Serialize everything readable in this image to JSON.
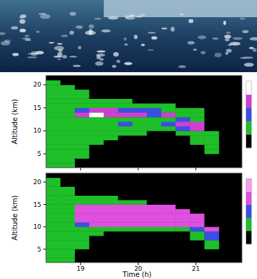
{
  "chart_data": [
    {
      "type": "heatmap",
      "y_label": "Altitude (km)",
      "tick_labels": "y",
      "xlim": [
        18.4,
        21.8
      ],
      "ylim": [
        2,
        22
      ],
      "xticks": [
        19,
        20,
        21
      ],
      "yticks": [
        5,
        10,
        15,
        20
      ],
      "x_edges": [
        18.4,
        18.65,
        18.9,
        19.15,
        19.4,
        19.65,
        19.9,
        20.15,
        20.4,
        20.65,
        20.9,
        21.15,
        21.4
      ],
      "y_edges": [
        2,
        3,
        4,
        5,
        6,
        7,
        8,
        9,
        10,
        11,
        12,
        13,
        14,
        15,
        16,
        17,
        18,
        19,
        20,
        21,
        22
      ],
      "cells": [
        [
          1,
          1,
          0,
          0,
          0,
          0,
          0,
          0,
          0,
          0,
          0,
          0
        ],
        [
          1,
          1,
          0,
          0,
          0,
          0,
          0,
          0,
          0,
          0,
          0,
          0
        ],
        [
          1,
          1,
          1,
          0,
          0,
          0,
          0,
          0,
          0,
          0,
          0,
          0
        ],
        [
          1,
          1,
          1,
          0,
          0,
          0,
          0,
          0,
          0,
          0,
          0,
          1
        ],
        [
          1,
          1,
          1,
          0,
          0,
          0,
          0,
          0,
          0,
          0,
          0,
          1
        ],
        [
          1,
          1,
          1,
          1,
          0,
          0,
          0,
          0,
          0,
          0,
          1,
          1
        ],
        [
          1,
          1,
          1,
          1,
          1,
          0,
          0,
          0,
          0,
          0,
          1,
          1
        ],
        [
          1,
          1,
          1,
          1,
          1,
          1,
          1,
          0,
          0,
          1,
          1,
          1
        ],
        [
          1,
          1,
          1,
          1,
          1,
          1,
          1,
          1,
          1,
          2,
          3,
          0
        ],
        [
          1,
          1,
          1,
          1,
          1,
          2,
          1,
          1,
          2,
          3,
          3,
          0
        ],
        [
          1,
          1,
          1,
          1,
          1,
          1,
          1,
          1,
          1,
          2,
          1,
          0
        ],
        [
          1,
          1,
          3,
          4,
          3,
          3,
          3,
          2,
          3,
          1,
          1,
          0
        ],
        [
          1,
          1,
          2,
          3,
          3,
          2,
          2,
          2,
          1,
          1,
          1,
          0
        ],
        [
          1,
          1,
          1,
          1,
          1,
          1,
          1,
          1,
          1,
          0,
          0,
          0
        ],
        [
          1,
          1,
          1,
          1,
          1,
          1,
          0,
          0,
          0,
          0,
          0,
          0
        ],
        [
          1,
          1,
          1,
          0,
          0,
          0,
          0,
          0,
          0,
          0,
          0,
          0
        ],
        [
          1,
          1,
          1,
          0,
          0,
          0,
          0,
          0,
          0,
          0,
          0,
          0
        ],
        [
          1,
          1,
          0,
          0,
          0,
          0,
          0,
          0,
          0,
          0,
          0,
          0
        ],
        [
          1,
          0,
          0,
          0,
          0,
          0,
          0,
          0,
          0,
          0,
          0,
          0
        ],
        [
          0,
          0,
          0,
          0,
          0,
          0,
          0,
          0,
          0,
          0,
          0,
          0
        ]
      ],
      "colors": [
        "#000000",
        "#1fbf2a",
        "#3a50e0",
        "#d040d0",
        "#ffffff"
      ],
      "colorbar_range": [
        0,
        4
      ]
    },
    {
      "type": "heatmap",
      "y_label": "Altitude (km)",
      "x_label": "Time (h)",
      "xlim": [
        18.4,
        21.8
      ],
      "ylim": [
        2,
        22
      ],
      "xticks": [
        19,
        20,
        21
      ],
      "yticks": [
        5,
        10,
        15,
        20
      ],
      "x_edges": [
        18.4,
        18.65,
        18.9,
        19.15,
        19.4,
        19.65,
        19.9,
        20.15,
        20.4,
        20.65,
        20.9,
        21.15,
        21.4
      ],
      "y_edges": [
        2,
        3,
        4,
        5,
        6,
        7,
        8,
        9,
        10,
        11,
        12,
        13,
        14,
        15,
        16,
        17,
        18,
        19,
        20,
        21,
        22
      ],
      "cells": [
        [
          1,
          1,
          0,
          0,
          0,
          0,
          0,
          0,
          0,
          0,
          0,
          0
        ],
        [
          1,
          1,
          0,
          0,
          0,
          0,
          0,
          0,
          0,
          0,
          0,
          0
        ],
        [
          1,
          1,
          0,
          0,
          0,
          0,
          0,
          0,
          0,
          0,
          0,
          0
        ],
        [
          1,
          1,
          1,
          0,
          0,
          0,
          0,
          0,
          0,
          0,
          0,
          1
        ],
        [
          1,
          1,
          1,
          0,
          0,
          0,
          0,
          0,
          0,
          0,
          0,
          1
        ],
        [
          1,
          1,
          1,
          0,
          0,
          0,
          0,
          0,
          0,
          0,
          1,
          2
        ],
        [
          1,
          1,
          1,
          1,
          0,
          0,
          0,
          0,
          0,
          0,
          1,
          2
        ],
        [
          1,
          1,
          1,
          1,
          1,
          1,
          1,
          1,
          1,
          1,
          2,
          3
        ],
        [
          1,
          1,
          2,
          3,
          3,
          3,
          3,
          3,
          3,
          3,
          3,
          0
        ],
        [
          1,
          1,
          3,
          3,
          3,
          3,
          3,
          3,
          3,
          3,
          3,
          0
        ],
        [
          1,
          1,
          3,
          3,
          3,
          3,
          3,
          3,
          3,
          3,
          3,
          0
        ],
        [
          1,
          1,
          3,
          3,
          3,
          3,
          3,
          3,
          3,
          3,
          0,
          0
        ],
        [
          1,
          1,
          3,
          3,
          3,
          3,
          3,
          3,
          3,
          0,
          0,
          0
        ],
        [
          1,
          1,
          1,
          1,
          1,
          1,
          1,
          0,
          0,
          0,
          0,
          0
        ],
        [
          1,
          1,
          1,
          1,
          1,
          0,
          0,
          0,
          0,
          0,
          0,
          0
        ],
        [
          1,
          1,
          0,
          0,
          0,
          0,
          0,
          0,
          0,
          0,
          0,
          0
        ],
        [
          1,
          1,
          0,
          0,
          0,
          0,
          0,
          0,
          0,
          0,
          0,
          0
        ],
        [
          1,
          0,
          0,
          0,
          0,
          0,
          0,
          0,
          0,
          0,
          0,
          0
        ],
        [
          1,
          0,
          0,
          0,
          0,
          0,
          0,
          0,
          0,
          0,
          0,
          0
        ],
        [
          0,
          0,
          0,
          0,
          0,
          0,
          0,
          0,
          0,
          0,
          0,
          0
        ]
      ],
      "colors": [
        "#000000",
        "#1fbf2a",
        "#3a50e0",
        "#e050e0",
        "#ff99ee"
      ],
      "colorbar_range": [
        0,
        4
      ]
    }
  ]
}
